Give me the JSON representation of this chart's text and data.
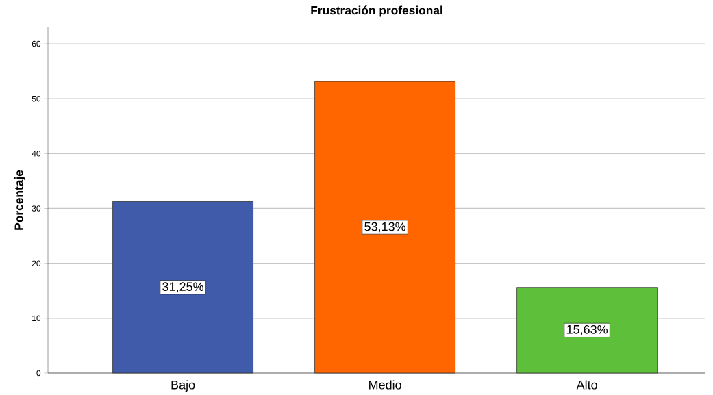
{
  "chart_data": {
    "type": "bar",
    "title": "Frustración profesional",
    "ylabel": "Porcentaje",
    "categories": [
      "Bajo",
      "Medio",
      "Alto"
    ],
    "values": [
      31.25,
      53.13,
      15.63
    ],
    "colors": [
      "#3f5ba9",
      "#ff6600",
      "#5dbf3a"
    ],
    "value_labels": [
      "31,25%",
      "53,13%",
      "15,63%"
    ],
    "ylim": [
      0,
      63
    ],
    "yticks": [
      0,
      10,
      20,
      30,
      40,
      50,
      60
    ],
    "grid": "y"
  }
}
